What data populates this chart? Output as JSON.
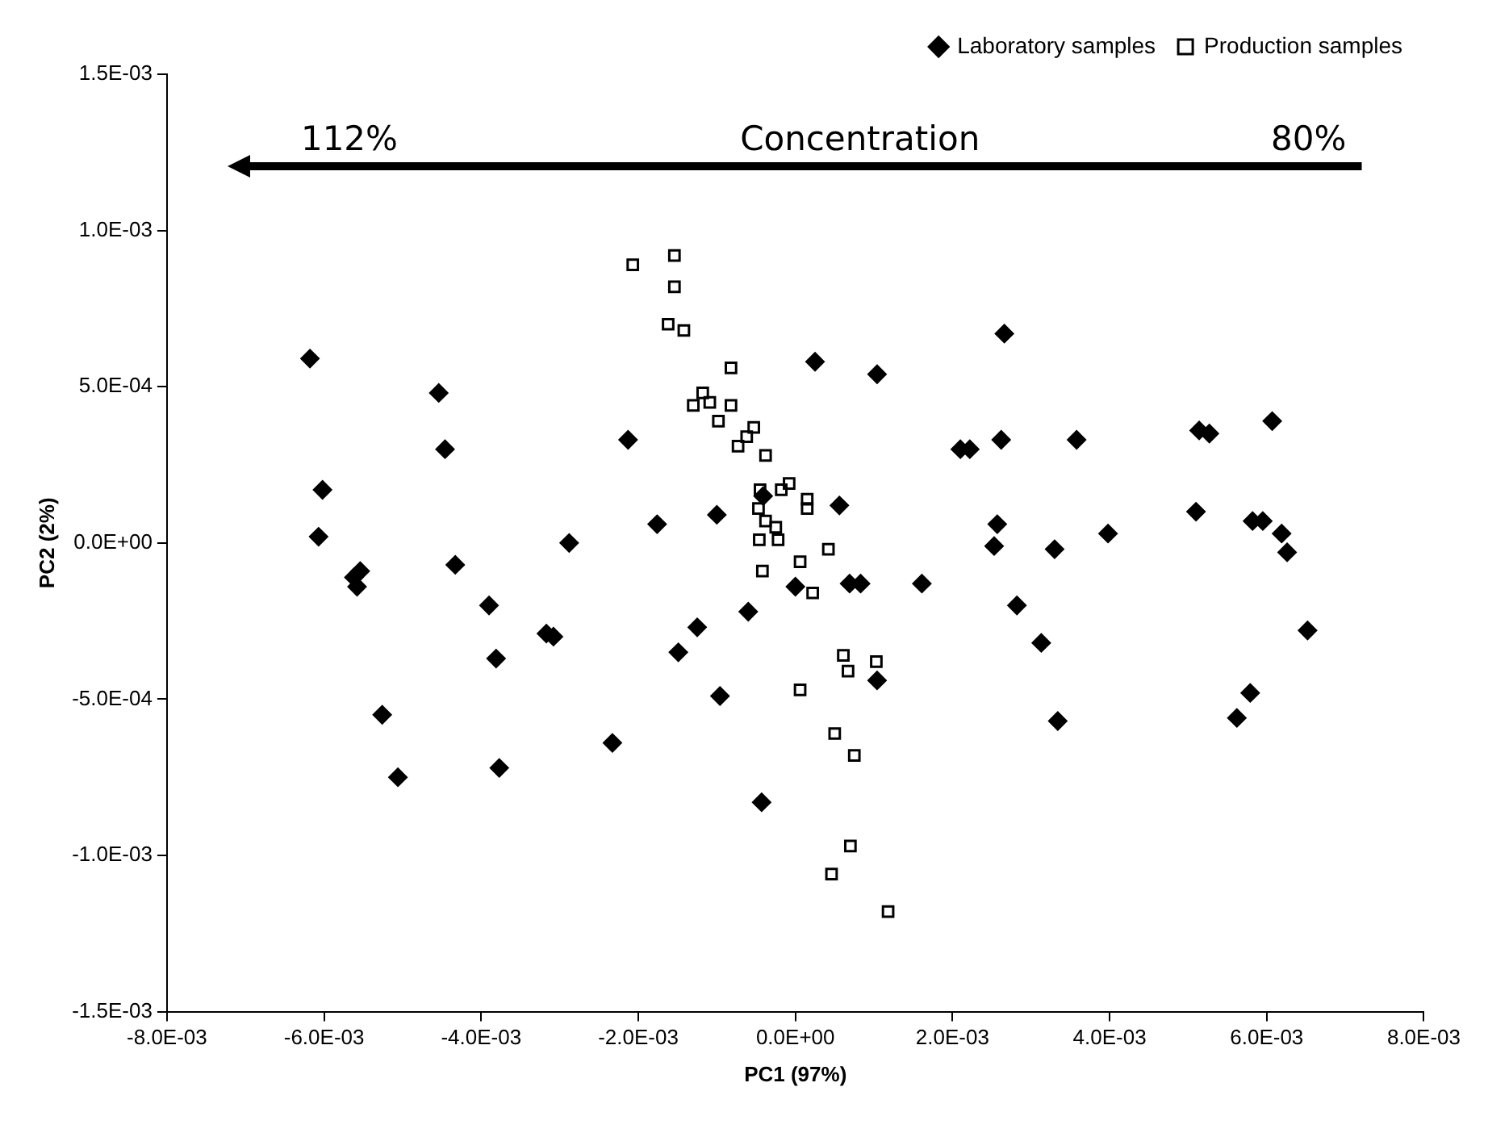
{
  "chart_data": {
    "type": "scatter",
    "xlabel": "PC1 (97%)",
    "ylabel": "PC2 (2%)",
    "annotations": [
      "112%",
      "Concentration",
      "80%"
    ],
    "xlim": [
      -0.008,
      0.008
    ],
    "xticks": [
      {
        "value": -0.008,
        "label": "-8.0E-03"
      },
      {
        "value": -0.006,
        "label": "-6.0E-03"
      },
      {
        "value": -0.004,
        "label": "-4.0E-03"
      },
      {
        "value": -0.002,
        "label": "-2.0E-03"
      },
      {
        "value": 0,
        "label": "0.0E+00"
      },
      {
        "value": 0.002,
        "label": "2.0E-03"
      },
      {
        "value": 0.004,
        "label": "4.0E-03"
      },
      {
        "value": 0.006,
        "label": "6.0E-03"
      },
      {
        "value": 0.008,
        "label": "8.0E-03"
      }
    ],
    "ylim": [
      -0.0015,
      0.0015
    ],
    "yticks": [
      {
        "value": -0.0015,
        "label": "-1.5E-03"
      },
      {
        "value": -0.001,
        "label": "-1.0E-03"
      },
      {
        "value": -0.0005,
        "label": "-5.0E-04"
      },
      {
        "value": 0,
        "label": "0.0E+00"
      },
      {
        "value": 0.0005,
        "label": "5.0E-04"
      },
      {
        "value": 0.001,
        "label": "1.0E-03"
      },
      {
        "value": 0.0015,
        "label": "1.5E-03"
      }
    ],
    "grid": false,
    "legend": "top right",
    "series": [
      {
        "name": "Laboratory samples",
        "color": "#000000",
        "marker": "diamond",
        "x": [
          -0.00618,
          -0.00454,
          -0.00446,
          -0.00602,
          -0.00607,
          -0.00288,
          -0.00554,
          -0.00562,
          -0.00558,
          -0.00433,
          -0.0039,
          -0.00381,
          -0.00317,
          -0.00308,
          -0.00526,
          -0.00506,
          -0.00377,
          -0.00213,
          -0.00176,
          -0.001,
          -0.00041,
          0.00025,
          0.00104,
          0.00056,
          0,
          0.00069,
          0.00083,
          0.00104,
          -0.0006,
          -0.00125,
          -0.00149,
          -0.00096,
          -0.00233,
          -0.00043,
          0.00266,
          0.0021,
          0.00222,
          0.00262,
          0.00358,
          0.00514,
          0.00527,
          0.00607,
          0.00257,
          0.00253,
          0.0033,
          0.00398,
          0.0051,
          0.00582,
          0.00595,
          0.00619,
          0.00626,
          0.00161,
          0.00282,
          0.00313,
          0.00334,
          0.00652,
          0.00579,
          0.00562
        ],
        "values": [
          0.00059,
          0.00048,
          0.0003,
          0.00017,
          2e-05,
          0,
          -9e-05,
          -0.00011,
          -0.00014,
          -7e-05,
          -0.0002,
          -0.00037,
          -0.00029,
          -0.0003,
          -0.00055,
          -0.00075,
          -0.00072,
          0.00033,
          6e-05,
          9e-05,
          0.00015,
          0.00058,
          0.00054,
          0.00012,
          -0.00014,
          -0.00013,
          -0.00013,
          -0.00044,
          -0.00022,
          -0.00027,
          -0.00035,
          -0.00049,
          -0.00064,
          -0.00083,
          0.00067,
          0.0003,
          0.0003,
          0.00033,
          0.00033,
          0.00036,
          0.00035,
          0.00039,
          6e-05,
          -1e-05,
          -2e-05,
          3e-05,
          0.0001,
          7e-05,
          7e-05,
          3e-05,
          -3e-05,
          -0.00013,
          -0.0002,
          -0.00032,
          -0.00057,
          -0.00028,
          -0.00048,
          -0.00056
        ]
      },
      {
        "name": "Production samples",
        "color": "#000000",
        "marker": "square",
        "x": [
          -0.00207,
          -0.00154,
          -0.00154,
          -0.00162,
          -0.00142,
          -0.00082,
          -0.00118,
          -0.0013,
          -0.00109,
          -0.00082,
          -0.00098,
          -0.00053,
          -0.00062,
          -0.00073,
          -0.00038,
          -0.00045,
          -0.00018,
          -8e-05,
          0.00015,
          0.00015,
          -0.00047,
          -0.00038,
          -0.00025,
          -0.00046,
          -0.00022,
          0.00042,
          6e-05,
          -0.00042,
          0.00022,
          0.00061,
          0.00067,
          0.00103,
          6e-05,
          0.0005,
          0.00075,
          0.0007,
          0.00046,
          0.00118
        ],
        "values": [
          0.00089,
          0.00092,
          0.00082,
          0.0007,
          0.00068,
          0.00056,
          0.00048,
          0.00044,
          0.00045,
          0.00044,
          0.00039,
          0.00037,
          0.00034,
          0.00031,
          0.00028,
          0.00017,
          0.00017,
          0.00019,
          0.00014,
          0.00011,
          0.00011,
          7e-05,
          5e-05,
          1e-05,
          1e-05,
          -2e-05,
          -6e-05,
          -9e-05,
          -0.00016,
          -0.00036,
          -0.00041,
          -0.00038,
          -0.00047,
          -0.00061,
          -0.00068,
          -0.00097,
          -0.00106,
          -0.00118
        ]
      }
    ]
  }
}
